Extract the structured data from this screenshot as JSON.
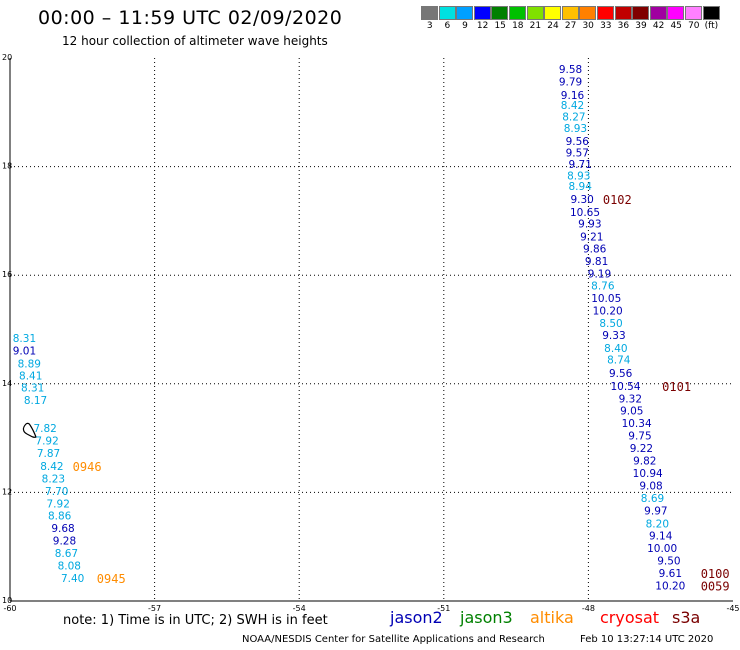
{
  "header": {
    "title": "00:00 – 11:59 UTC 02/09/2020",
    "subtitle": "12 hour collection of altimeter wave heights"
  },
  "colorbar": {
    "colors": [
      "#777777",
      "#00e0e0",
      "#00a0ff",
      "#0000ff",
      "#008000",
      "#00c000",
      "#80e000",
      "#ffff00",
      "#ffc000",
      "#ff8000",
      "#ff0000",
      "#c00000",
      "#800000",
      "#a000a0",
      "#ff00ff",
      "#ff80ff",
      "#000000"
    ],
    "labels": [
      "3",
      "6",
      "9",
      "12",
      "15",
      "18",
      "21",
      "24",
      "27",
      "30",
      "33",
      "36",
      "39",
      "42",
      "45",
      "70",
      "(ft)"
    ]
  },
  "chart_data": {
    "type": "scatter",
    "xlim": [
      -60,
      -45
    ],
    "ylim": [
      10,
      20
    ],
    "x_ticks": [
      "-60",
      "-57",
      "-54",
      "-51",
      "-48",
      "-45"
    ],
    "y_ticks": [
      "10",
      "12",
      "14",
      "16",
      "18",
      "20"
    ],
    "grid": true,
    "series": [
      {
        "name": "jason2",
        "color": "#0000b4"
      },
      {
        "name": "jason3",
        "color": "#008000"
      },
      {
        "name": "altika",
        "color": "#ff8c00"
      },
      {
        "name": "cryosat",
        "color": "#ff0000"
      },
      {
        "name": "s3a",
        "color": "#7a0000"
      }
    ],
    "labels": [
      {
        "x": -48.37,
        "y": 19.8,
        "text": "9.58",
        "color": "#0000b4"
      },
      {
        "x": -48.37,
        "y": 19.57,
        "text": "9.79",
        "color": "#0000b4"
      },
      {
        "x": -48.33,
        "y": 19.32,
        "text": "9.16",
        "color": "#0000b4"
      },
      {
        "x": -48.33,
        "y": 19.13,
        "text": "8.42",
        "color": "#00a8e0"
      },
      {
        "x": -48.3,
        "y": 18.92,
        "text": "8.27",
        "color": "#00a8e0"
      },
      {
        "x": -48.27,
        "y": 18.71,
        "text": "8.93",
        "color": "#00a8e0"
      },
      {
        "x": -48.23,
        "y": 18.47,
        "text": "9.56",
        "color": "#0000b4"
      },
      {
        "x": -48.23,
        "y": 18.26,
        "text": "9.57",
        "color": "#0000b4"
      },
      {
        "x": -48.17,
        "y": 18.05,
        "text": "9.71",
        "color": "#0000b4"
      },
      {
        "x": -48.2,
        "y": 17.84,
        "text": "8.93",
        "color": "#00a8e0"
      },
      {
        "x": -48.17,
        "y": 17.64,
        "text": "8.94",
        "color": "#00a8e0"
      },
      {
        "x": -48.13,
        "y": 17.4,
        "text": "9.30",
        "color": "#0000b4"
      },
      {
        "x": -48.07,
        "y": 17.16,
        "text": "10.65",
        "color": "#0000b4"
      },
      {
        "x": -47.97,
        "y": 16.95,
        "text": "9.93",
        "color": "#0000b4"
      },
      {
        "x": -47.93,
        "y": 16.71,
        "text": "9.21",
        "color": "#0000b4"
      },
      {
        "x": -47.87,
        "y": 16.49,
        "text": "9.86",
        "color": "#0000b4"
      },
      {
        "x": -47.83,
        "y": 16.26,
        "text": "9.81",
        "color": "#0000b4"
      },
      {
        "x": -47.77,
        "y": 16.03,
        "text": "9.19",
        "color": "#0000b4"
      },
      {
        "x": -47.7,
        "y": 15.81,
        "text": "8.76",
        "color": "#00a8e0"
      },
      {
        "x": -47.63,
        "y": 15.58,
        "text": "10.05",
        "color": "#0000b4"
      },
      {
        "x": -47.6,
        "y": 15.35,
        "text": "10.20",
        "color": "#0000b4"
      },
      {
        "x": -47.53,
        "y": 15.12,
        "text": "8.50",
        "color": "#00a8e0"
      },
      {
        "x": -47.47,
        "y": 14.9,
        "text": "9.33",
        "color": "#0000b4"
      },
      {
        "x": -47.43,
        "y": 14.66,
        "text": "8.40",
        "color": "#00a8e0"
      },
      {
        "x": -47.37,
        "y": 14.45,
        "text": "8.74",
        "color": "#00a8e0"
      },
      {
        "x": -47.33,
        "y": 14.2,
        "text": "9.56",
        "color": "#0000b4"
      },
      {
        "x": -47.23,
        "y": 13.96,
        "text": "10.54",
        "color": "#0000b4"
      },
      {
        "x": -47.13,
        "y": 13.73,
        "text": "9.32",
        "color": "#0000b4"
      },
      {
        "x": -47.1,
        "y": 13.51,
        "text": "9.05",
        "color": "#0000b4"
      },
      {
        "x": -47.0,
        "y": 13.28,
        "text": "10.34",
        "color": "#0000b4"
      },
      {
        "x": -46.93,
        "y": 13.05,
        "text": "9.75",
        "color": "#0000b4"
      },
      {
        "x": -46.9,
        "y": 12.82,
        "text": "9.22",
        "color": "#0000b4"
      },
      {
        "x": -46.83,
        "y": 12.59,
        "text": "9.82",
        "color": "#0000b4"
      },
      {
        "x": -46.77,
        "y": 12.36,
        "text": "10.94",
        "color": "#0000b4"
      },
      {
        "x": -46.7,
        "y": 12.13,
        "text": "9.08",
        "color": "#0000b4"
      },
      {
        "x": -46.67,
        "y": 11.9,
        "text": "8.69",
        "color": "#00a8e0"
      },
      {
        "x": -46.6,
        "y": 11.67,
        "text": "9.97",
        "color": "#0000b4"
      },
      {
        "x": -46.57,
        "y": 11.43,
        "text": "8.20",
        "color": "#00a8e0"
      },
      {
        "x": -46.5,
        "y": 11.21,
        "text": "9.14",
        "color": "#0000b4"
      },
      {
        "x": -46.47,
        "y": 10.98,
        "text": "10.00",
        "color": "#0000b4"
      },
      {
        "x": -46.33,
        "y": 10.75,
        "text": "9.50",
        "color": "#0000b4"
      },
      {
        "x": -46.3,
        "y": 10.52,
        "text": "9.61",
        "color": "#0000b4"
      },
      {
        "x": -46.3,
        "y": 10.29,
        "text": "10.20",
        "color": "#0000b4"
      },
      {
        "x": -59.7,
        "y": 14.84,
        "text": "8.31",
        "color": "#00a8e0"
      },
      {
        "x": -59.7,
        "y": 14.61,
        "text": "9.01",
        "color": "#0000b4"
      },
      {
        "x": -59.6,
        "y": 14.37,
        "text": "8.89",
        "color": "#00a8e0"
      },
      {
        "x": -59.57,
        "y": 14.15,
        "text": "8.41",
        "color": "#00a8e0"
      },
      {
        "x": -59.53,
        "y": 13.93,
        "text": "8.31",
        "color": "#00a8e0"
      },
      {
        "x": -59.47,
        "y": 13.7,
        "text": "8.17",
        "color": "#00a8e0"
      },
      {
        "x": -59.27,
        "y": 13.19,
        "text": "7.82",
        "color": "#00a8e0"
      },
      {
        "x": -59.23,
        "y": 12.96,
        "text": "7.92",
        "color": "#00a8e0"
      },
      {
        "x": -59.2,
        "y": 12.73,
        "text": "7.87",
        "color": "#00a8e0"
      },
      {
        "x": -59.13,
        "y": 12.49,
        "text": "8.42",
        "color": "#00a8e0"
      },
      {
        "x": -59.1,
        "y": 12.26,
        "text": "8.23",
        "color": "#00a8e0"
      },
      {
        "x": -59.03,
        "y": 12.03,
        "text": "7.70",
        "color": "#00a8e0"
      },
      {
        "x": -59.0,
        "y": 11.8,
        "text": "7.92",
        "color": "#00a8e0"
      },
      {
        "x": -58.97,
        "y": 11.57,
        "text": "8.86",
        "color": "#00a8e0"
      },
      {
        "x": -58.9,
        "y": 11.34,
        "text": "9.68",
        "color": "#0000b4"
      },
      {
        "x": -58.87,
        "y": 11.11,
        "text": "9.28",
        "color": "#0000b4"
      },
      {
        "x": -58.83,
        "y": 10.88,
        "text": "8.67",
        "color": "#00a8e0"
      },
      {
        "x": -58.77,
        "y": 10.65,
        "text": "8.08",
        "color": "#00a8e0"
      },
      {
        "x": -58.7,
        "y": 10.42,
        "text": "7.40",
        "color": "#00a8e0"
      }
    ],
    "time_labels": [
      {
        "x": -47.4,
        "y": 17.4,
        "text": "0102",
        "color": "#7a0000"
      },
      {
        "x": -46.17,
        "y": 13.96,
        "text": "0101",
        "color": "#7a0000"
      },
      {
        "x": -45.37,
        "y": 10.52,
        "text": "0100",
        "color": "#7a0000"
      },
      {
        "x": -45.37,
        "y": 10.29,
        "text": "0059",
        "color": "#7a0000"
      },
      {
        "x": -58.4,
        "y": 12.49,
        "text": "0946",
        "color": "#ff8c00"
      },
      {
        "x": -57.9,
        "y": 10.42,
        "text": "0945",
        "color": "#ff8c00"
      }
    ]
  },
  "footer": {
    "note": "note:  1) Time is in UTC;  2) SWH is in feet",
    "credit": "NOAA/NESDIS Center for Satellite Applications and Research",
    "timestamp": "Feb 10 13:27:14 UTC 2020"
  }
}
